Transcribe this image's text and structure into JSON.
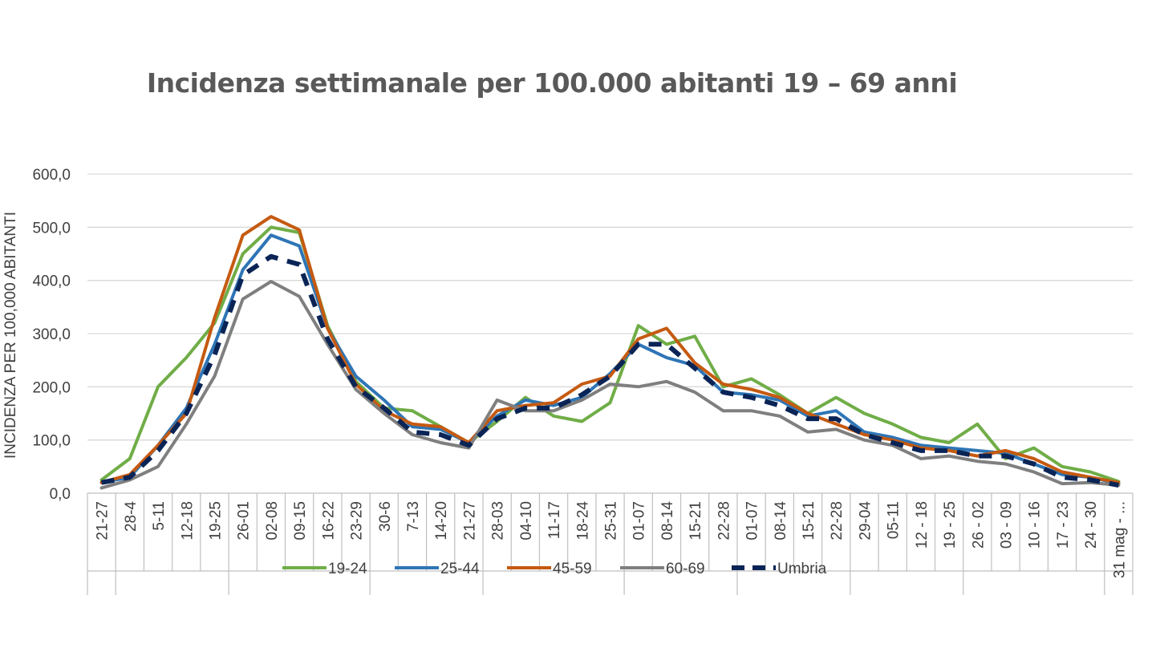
{
  "chart_data": {
    "type": "line",
    "title": "Incidenza settimanale per 100.000 abitanti 19 – 69 anni",
    "ylabel": "INCIDENZA PER 100,000 ABITANTI",
    "ylim": [
      0,
      600
    ],
    "yticks": [
      "0,0",
      "100,0",
      "200,0",
      "300,0",
      "400,0",
      "500,0",
      "600,0"
    ],
    "y_tick_values": [
      0,
      100,
      200,
      300,
      400,
      500,
      600
    ],
    "grid": true,
    "legend_position": "bottom",
    "categories": [
      "21-27",
      "28-4",
      "5-11",
      "12-18",
      "19-25",
      "26-01",
      "02-08",
      "09-15",
      "16-22",
      "23-29",
      "30-6",
      "7-13",
      "14-20",
      "21-27",
      "28-03",
      "04-10",
      "11-17",
      "18-24",
      "25-31",
      "01-07",
      "08-14",
      "15-21",
      "22-28",
      "01-07",
      "08-14",
      "15-21",
      "22-28",
      "29-04",
      "05-11",
      "12 - 18",
      "19 - 25",
      "26 - 02",
      "03 - 09",
      "10 - 16",
      "17 - 23",
      "24 - 30",
      "31 mag - ..."
    ],
    "series": [
      {
        "name": "19-24",
        "color": "#70AD47",
        "dashed": false,
        "values": [
          25,
          65,
          200,
          255,
          320,
          450,
          500,
          490,
          315,
          210,
          160,
          155,
          125,
          95,
          135,
          180,
          145,
          135,
          170,
          315,
          280,
          295,
          200,
          215,
          185,
          150,
          180,
          150,
          130,
          105,
          95,
          130,
          65,
          85,
          50,
          40,
          22
        ]
      },
      {
        "name": "25-44",
        "color": "#2E75B6",
        "dashed": false,
        "values": [
          20,
          30,
          90,
          160,
          280,
          420,
          485,
          465,
          310,
          220,
          175,
          125,
          120,
          95,
          145,
          175,
          165,
          180,
          225,
          280,
          255,
          240,
          190,
          185,
          175,
          145,
          155,
          115,
          105,
          90,
          85,
          80,
          75,
          55,
          35,
          30,
          18
        ]
      },
      {
        "name": "45-59",
        "color": "#C55A11",
        "dashed": false,
        "values": [
          20,
          35,
          90,
          150,
          330,
          485,
          520,
          495,
          310,
          205,
          155,
          130,
          125,
          95,
          155,
          165,
          170,
          205,
          220,
          290,
          310,
          245,
          205,
          195,
          180,
          150,
          130,
          110,
          100,
          85,
          80,
          70,
          80,
          65,
          40,
          30,
          20
        ]
      },
      {
        "name": "60-69",
        "color": "#7F7F7F",
        "dashed": false,
        "values": [
          10,
          25,
          50,
          130,
          220,
          365,
          398,
          370,
          280,
          195,
          150,
          110,
          95,
          85,
          175,
          155,
          155,
          175,
          205,
          200,
          210,
          190,
          155,
          155,
          145,
          115,
          120,
          100,
          90,
          65,
          70,
          60,
          55,
          40,
          18,
          20,
          15
        ]
      },
      {
        "name": "Umbria",
        "color": "#0A2456",
        "dashed": true,
        "values": [
          20,
          30,
          80,
          150,
          260,
          410,
          445,
          430,
          290,
          200,
          160,
          115,
          110,
          90,
          140,
          160,
          160,
          185,
          220,
          280,
          280,
          235,
          190,
          180,
          165,
          140,
          140,
          110,
          95,
          80,
          80,
          70,
          70,
          55,
          30,
          25,
          15
        ]
      }
    ]
  }
}
